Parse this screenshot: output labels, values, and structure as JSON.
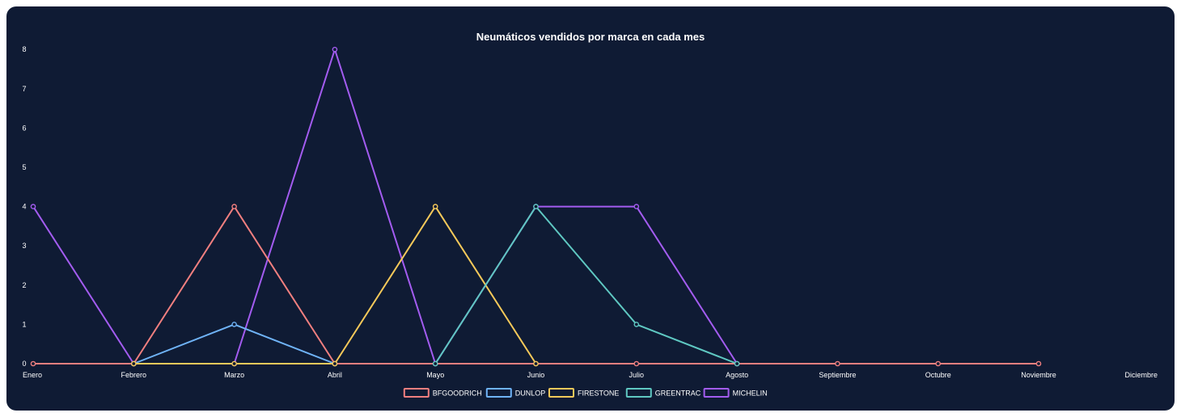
{
  "chart_data": {
    "type": "line",
    "title": "Neumáticos vendidos por marca en cada mes",
    "xlabel": "",
    "ylabel": "",
    "categories": [
      "Enero",
      "Febrero",
      "Marzo",
      "Abril",
      "Mayo",
      "Junio",
      "Julio",
      "Agosto",
      "Septiembre",
      "Octubre",
      "Noviembre",
      "Diciembre"
    ],
    "ylim": [
      0,
      8
    ],
    "yticks": [
      "0",
      "1",
      "2",
      "3",
      "4",
      "5",
      "6",
      "7",
      "8"
    ],
    "grid": false,
    "legend_position": "bottom",
    "series": [
      {
        "name": "BFGOODRICH",
        "color": "#f07f7f",
        "values": [
          0,
          0,
          4,
          0,
          0,
          0,
          0,
          0,
          0,
          0,
          0,
          null
        ]
      },
      {
        "name": "DUNLOP",
        "color": "#6fb3f7",
        "values": [
          null,
          0,
          1,
          0,
          null,
          null,
          null,
          null,
          null,
          null,
          null,
          null
        ]
      },
      {
        "name": "FIRESTONE",
        "color": "#f5c95a",
        "values": [
          null,
          0,
          0,
          0,
          4,
          0,
          null,
          null,
          null,
          null,
          null,
          null
        ]
      },
      {
        "name": "GREENTRAC",
        "color": "#5fc8c2",
        "values": [
          null,
          null,
          null,
          null,
          0,
          4,
          1,
          0,
          null,
          null,
          null,
          null
        ]
      },
      {
        "name": "MICHELIN",
        "color": "#a35cf0",
        "values": [
          4,
          0,
          0,
          8,
          0,
          4,
          4,
          0,
          null,
          null,
          null,
          null
        ]
      }
    ]
  }
}
